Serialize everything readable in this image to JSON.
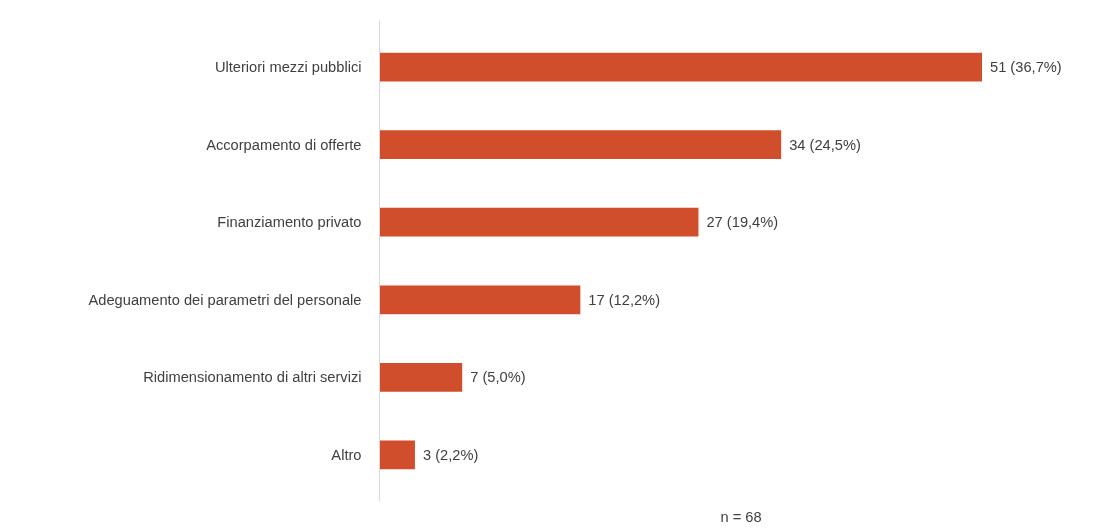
{
  "chart_data": {
    "type": "bar",
    "orientation": "horizontal",
    "categories": [
      "Ulteriori mezzi pubblici",
      "Accorpamento di offerte",
      "Finanziamento privato",
      "Adeguamento dei parametri del personale",
      "Ridimensionamento di altri servizi",
      "Altro"
    ],
    "values": [
      51,
      34,
      27,
      17,
      7,
      3
    ],
    "value_labels": [
      "51 (36,7%)",
      "34 (24,5%)",
      "27 (19,4%)",
      "17 (12,2%)",
      "7 (5,0%)",
      "3 (2,2%)"
    ],
    "color": "#d04e2b",
    "grid": false,
    "annotations": [
      "n = 68"
    ]
  }
}
